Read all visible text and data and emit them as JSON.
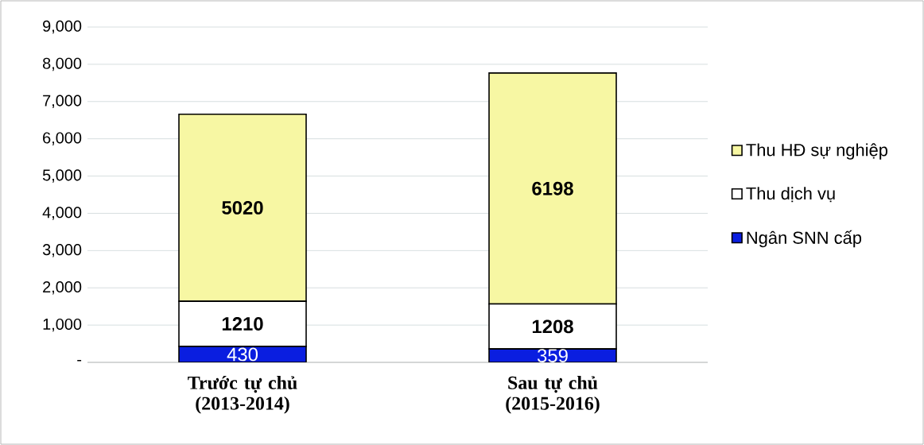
{
  "chart_data": {
    "type": "bar",
    "stacked": true,
    "categories": [
      "Trước tự chủ (2013-2014)",
      "Sau tự chủ (2015-2016)"
    ],
    "series": [
      {
        "name": "Ngân SNN cấp",
        "color": "#0a1ee0",
        "values": [
          430,
          359
        ]
      },
      {
        "name": "Thu dịch vụ",
        "color": "#ffffff",
        "values": [
          1210,
          1208
        ]
      },
      {
        "name": "Thu HĐ sự nghiệp",
        "color": "#f7f7a3",
        "values": [
          5020,
          6198
        ]
      }
    ],
    "ylim": [
      0,
      9000
    ],
    "yticks": [
      {
        "value": 0,
        "label": "-"
      },
      {
        "value": 1000,
        "label": "1,000"
      },
      {
        "value": 2000,
        "label": "2,000"
      },
      {
        "value": 3000,
        "label": "3,000"
      },
      {
        "value": 4000,
        "label": "4,000"
      },
      {
        "value": 5000,
        "label": "5,000"
      },
      {
        "value": 6000,
        "label": "6,000"
      },
      {
        "value": 7000,
        "label": "7,000"
      },
      {
        "value": 8000,
        "label": "8,000"
      },
      {
        "value": 9000,
        "label": "9,000"
      }
    ],
    "grid": "y",
    "legend": "right",
    "data_labels": true
  }
}
